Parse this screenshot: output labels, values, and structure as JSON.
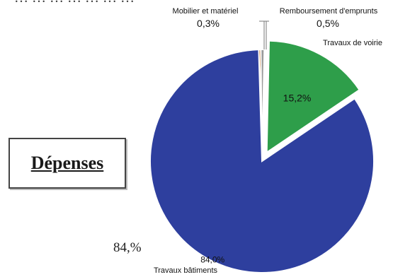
{
  "top_partial_text": "… … … … … … …",
  "box_title": "Dépenses",
  "handwritten_note": "84,%",
  "colors": {
    "batiments": "#2e3f9e",
    "voirie": "#2e9e4a",
    "mobilier": "#c2722a",
    "emprunts": "#9a9a9a"
  },
  "chart_data": {
    "type": "pie",
    "title": "",
    "slices": [
      {
        "label": "Travaux bâtiments",
        "value": 84.0,
        "value_label": "84,0%",
        "exploded": false
      },
      {
        "label": "Travaux de voirie",
        "value": 15.2,
        "value_label": "15,2%",
        "exploded": true
      },
      {
        "label": "Mobilier et matériel",
        "value": 0.3,
        "value_label": "0,3%",
        "exploded": false
      },
      {
        "label": "Remboursement d'emprunts",
        "value": 0.5,
        "value_label": "0,5%",
        "exploded": false
      }
    ]
  }
}
